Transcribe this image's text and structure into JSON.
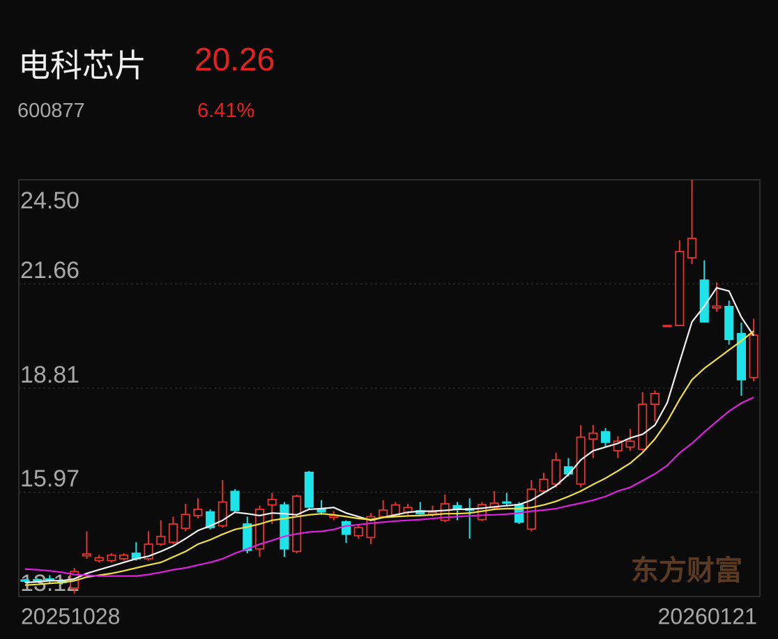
{
  "header": {
    "name": "电科芯片",
    "price": "20.26",
    "code": "600877",
    "change": "6.41%"
  },
  "watermark": "东方财富",
  "chart_data": {
    "type": "candlestick",
    "categories": [
      "20251028",
      null,
      null,
      null,
      null,
      null,
      null,
      null,
      null,
      null,
      null,
      null,
      null,
      null,
      null,
      null,
      null,
      null,
      null,
      null,
      null,
      null,
      null,
      null,
      null,
      null,
      null,
      null,
      null,
      null,
      null,
      null,
      null,
      null,
      null,
      null,
      null,
      null,
      null,
      null,
      null,
      null,
      null,
      null,
      null,
      null,
      null,
      null,
      null,
      null,
      null,
      null,
      null,
      null,
      null,
      null,
      null,
      null,
      null,
      "20260121"
    ],
    "open": [
      13.57,
      13.58,
      13.6,
      13.55,
      13.35,
      14.23,
      14.1,
      14.1,
      14.15,
      14.3,
      14.15,
      14.55,
      14.6,
      14.98,
      15.33,
      15.43,
      15.05,
      15.99,
      15.1,
      14.42,
      15.62,
      15.62,
      14.35,
      16.51,
      15.5,
      15.28,
      15.16,
      14.78,
      14.73,
      15.3,
      15.35,
      15.42,
      15.46,
      15.37,
      15.2,
      15.6,
      15.52,
      15.22,
      15.55,
      15.7,
      15.63,
      14.96,
      16.0,
      16.19,
      16.66,
      16.19,
      17.42,
      17.62,
      17.1,
      17.2,
      17.14,
      18.37,
      20.52,
      20.52,
      22.37,
      21.76,
      21.0,
      21.04,
      20.3,
      19.1
    ],
    "high": [
      13.6,
      13.62,
      13.7,
      13.6,
      13.9,
      14.9,
      14.25,
      14.3,
      14.3,
      14.6,
      14.9,
      15.2,
      15.3,
      15.65,
      15.8,
      15.5,
      16.3,
      16.05,
      15.3,
      15.6,
      15.95,
      15.7,
      15.9,
      16.55,
      15.75,
      15.45,
      15.2,
      15.1,
      15.4,
      15.75,
      15.7,
      15.65,
      15.7,
      15.6,
      15.9,
      15.7,
      15.8,
      15.7,
      16.0,
      15.95,
      15.7,
      16.3,
      16.5,
      17.05,
      16.9,
      17.8,
      17.8,
      17.72,
      17.5,
      17.7,
      18.7,
      18.75,
      20.52,
      22.85,
      24.5,
      22.3,
      21.7,
      21.2,
      20.6,
      20.7
    ],
    "low": [
      13.5,
      13.52,
      13.5,
      13.45,
      13.2,
      14.15,
      14.05,
      14.05,
      14.1,
      14.1,
      14.1,
      14.5,
      14.55,
      14.9,
      15.25,
      14.95,
      15.0,
      15.42,
      14.3,
      14.2,
      15.1,
      14.2,
      14.3,
      15.5,
      15.35,
      15.2,
      14.58,
      14.7,
      14.55,
      15.25,
      15.3,
      15.35,
      15.35,
      15.3,
      15.15,
      15.2,
      14.7,
      15.18,
      15.5,
      15.6,
      15.1,
      14.9,
      15.95,
      16.1,
      16.4,
      16.1,
      16.9,
      17.2,
      16.9,
      17.1,
      17.1,
      17.9,
      20.52,
      20.52,
      22.2,
      20.6,
      20.9,
      20.0,
      18.6,
      19.0
    ],
    "close": [
      13.54,
      13.55,
      13.56,
      13.5,
      13.8,
      14.28,
      14.18,
      14.25,
      14.25,
      14.15,
      14.55,
      14.76,
      15.1,
      15.36,
      15.5,
      15.0,
      15.7,
      15.47,
      14.38,
      15.5,
      15.77,
      14.42,
      15.86,
      15.56,
      15.43,
      15.33,
      14.82,
      15.0,
      15.3,
      15.48,
      15.62,
      15.55,
      15.38,
      15.42,
      15.65,
      15.5,
      15.48,
      15.63,
      15.67,
      15.68,
      15.15,
      16.05,
      16.32,
      16.85,
      16.47,
      17.47,
      17.58,
      17.33,
      17.36,
      17.36,
      18.37,
      18.66,
      20.52,
      22.54,
      22.9,
      20.62,
      21.05,
      20.14,
      19.04,
      20.26
    ],
    "up_color": "#e8342e",
    "down_color": "#1ee3e8",
    "series": [
      {
        "color": "#f2f2f2",
        "values": [
          13.5,
          13.52,
          13.55,
          13.55,
          13.6,
          13.75,
          13.85,
          13.95,
          14.05,
          14.15,
          14.22,
          14.35,
          14.5,
          14.7,
          14.92,
          15.05,
          15.2,
          15.42,
          15.38,
          15.33,
          15.4,
          15.38,
          15.35,
          15.5,
          15.52,
          15.55,
          15.4,
          15.3,
          15.2,
          15.28,
          15.35,
          15.42,
          15.45,
          15.45,
          15.47,
          15.5,
          15.5,
          15.53,
          15.57,
          15.6,
          15.63,
          15.75,
          15.95,
          16.15,
          16.45,
          16.85,
          17.1,
          17.2,
          17.3,
          17.45,
          17.55,
          17.8,
          18.41,
          19.52,
          20.62,
          21.05,
          21.55,
          21.46,
          20.75,
          20.24
        ]
      },
      {
        "color": "#f0e040",
        "values": [
          13.43,
          13.45,
          13.48,
          13.5,
          13.55,
          13.65,
          13.7,
          13.75,
          13.82,
          13.9,
          13.98,
          14.05,
          14.2,
          14.35,
          14.55,
          14.67,
          14.82,
          14.95,
          15.02,
          15.1,
          15.2,
          15.25,
          15.3,
          15.35,
          15.38,
          15.35,
          15.3,
          15.25,
          15.22,
          15.28,
          15.3,
          15.32,
          15.33,
          15.35,
          15.38,
          15.38,
          15.4,
          15.45,
          15.5,
          15.52,
          15.52,
          15.55,
          15.62,
          15.72,
          15.85,
          16.0,
          16.18,
          16.35,
          16.55,
          16.76,
          17.05,
          17.42,
          17.9,
          18.5,
          19.04,
          19.35,
          19.6,
          19.85,
          20.1,
          20.37
        ]
      },
      {
        "color": "#e020e0",
        "values": [
          13.87,
          13.85,
          13.82,
          13.78,
          13.72,
          13.7,
          13.68,
          13.68,
          13.68,
          13.68,
          13.72,
          13.78,
          13.85,
          13.9,
          13.98,
          14.05,
          14.15,
          14.3,
          14.42,
          14.55,
          14.65,
          14.76,
          14.83,
          14.88,
          14.9,
          14.95,
          15.05,
          15.08,
          15.12,
          15.15,
          15.18,
          15.2,
          15.22,
          15.25,
          15.28,
          15.3,
          15.32,
          15.34,
          15.35,
          15.37,
          15.4,
          15.45,
          15.48,
          15.52,
          15.6,
          15.67,
          15.75,
          15.85,
          16.0,
          16.1,
          16.28,
          16.47,
          16.7,
          17.04,
          17.3,
          17.61,
          17.9,
          18.18,
          18.4,
          18.56
        ]
      }
    ],
    "ylim": [
      13.12,
      24.5
    ],
    "yticks": [
      13.12,
      15.97,
      18.81,
      21.66,
      {
        "value": 24.5,
        "label": "24.50"
      }
    ],
    "grid": true
  }
}
